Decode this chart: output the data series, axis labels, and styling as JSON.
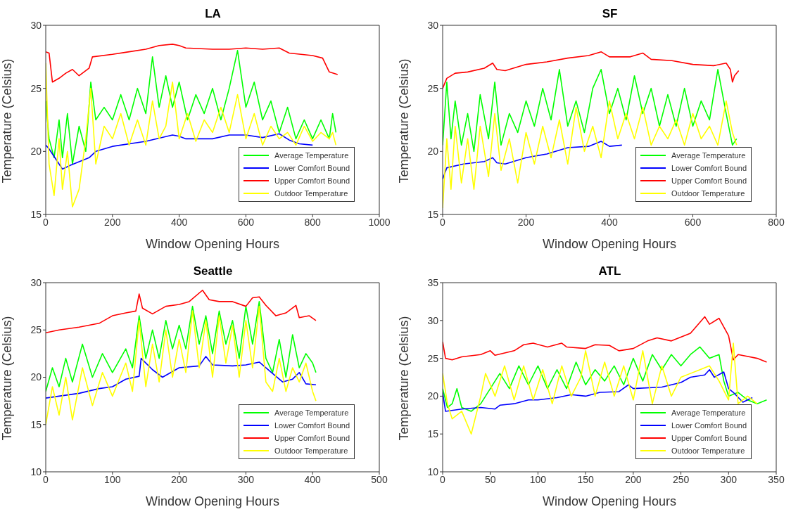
{
  "chart_data": [
    {
      "type": "line",
      "title": "LA",
      "xlabel": "Window Opening Hours",
      "ylabel": "Temperature (Celsius)",
      "xlim": [
        0,
        1000
      ],
      "xticks": [
        0,
        200,
        400,
        600,
        800,
        1000
      ],
      "ylim": [
        15,
        30
      ],
      "yticks": [
        15,
        20,
        25,
        30
      ],
      "legend": "bottom right",
      "series": [
        {
          "name": "Average Temperature",
          "color": "#00ff00",
          "x": [
            0,
            10,
            25,
            40,
            50,
            65,
            80,
            100,
            120,
            135,
            150,
            175,
            200,
            225,
            250,
            275,
            300,
            320,
            340,
            360,
            380,
            400,
            425,
            450,
            475,
            500,
            525,
            550,
            575,
            600,
            625,
            650,
            675,
            700,
            725,
            750,
            775,
            800,
            825,
            850,
            860,
            870
          ],
          "values": [
            24,
            21,
            19.5,
            22.5,
            19.5,
            23,
            19,
            22,
            20,
            25.5,
            22.5,
            23.5,
            22.5,
            24.5,
            22.5,
            25,
            23,
            27.5,
            23.5,
            26,
            23.5,
            25.5,
            22.5,
            24.5,
            23,
            25,
            22.5,
            25,
            28,
            23.5,
            25.5,
            22.5,
            24,
            21.5,
            23.5,
            21,
            22.5,
            21,
            22.5,
            21,
            23,
            21.5
          ]
        },
        {
          "name": "Lower Comfort Bound",
          "color": "#0000ff",
          "x": [
            0,
            10,
            50,
            74,
            130,
            150,
            200,
            300,
            380,
            400,
            420,
            500,
            550,
            600,
            650,
            700,
            730,
            760,
            800
          ],
          "values": [
            20.5,
            20.2,
            18.6,
            18.9,
            19.5,
            20.0,
            20.4,
            20.8,
            21.3,
            21.2,
            21.0,
            21.0,
            21.3,
            21.3,
            21.1,
            21.4,
            20.9,
            20.6,
            20.5
          ]
        },
        {
          "name": "Upper Comfort Bound",
          "color": "#ff0000",
          "x": [
            0,
            10,
            20,
            40,
            60,
            80,
            100,
            130,
            140,
            200,
            250,
            300,
            340,
            380,
            400,
            420,
            500,
            550,
            600,
            650,
            700,
            730,
            800,
            830,
            850,
            875
          ],
          "values": [
            27.9,
            27.8,
            25.5,
            25.8,
            26.2,
            26.5,
            26.0,
            26.6,
            27.5,
            27.7,
            27.9,
            28.1,
            28.4,
            28.5,
            28.4,
            28.2,
            28.1,
            28.1,
            28.2,
            28.1,
            28.2,
            27.8,
            27.6,
            27.4,
            26.3,
            26.1
          ]
        },
        {
          "name": "Outdoor Temperature",
          "color": "#ffff00",
          "x": [
            0,
            10,
            25,
            40,
            50,
            65,
            80,
            100,
            120,
            135,
            150,
            175,
            200,
            225,
            250,
            275,
            300,
            320,
            340,
            360,
            380,
            400,
            425,
            450,
            475,
            500,
            525,
            550,
            575,
            600,
            625,
            650,
            675,
            700,
            725,
            750,
            775,
            800,
            825,
            850,
            860,
            870
          ],
          "values": [
            27,
            19,
            16.5,
            21,
            17,
            20,
            15.6,
            17,
            21,
            25,
            19,
            22,
            21,
            23,
            20.5,
            22.5,
            20.5,
            24,
            21,
            22,
            25.5,
            21,
            23,
            20.8,
            22.5,
            21.5,
            23.5,
            21.5,
            24.5,
            21,
            23,
            20.5,
            22,
            21,
            21.5,
            20.5,
            22,
            20.8,
            21.5,
            21,
            21.5,
            20.5
          ]
        }
      ]
    },
    {
      "type": "line",
      "title": "SF",
      "xlabel": "Window Opening Hours",
      "ylabel": "Temperature (Celsius)",
      "xlim": [
        0,
        800
      ],
      "xticks": [
        0,
        200,
        400,
        600,
        800
      ],
      "ylim": [
        15,
        30
      ],
      "yticks": [
        15,
        20,
        25,
        30
      ],
      "legend": "bottom right",
      "series": [
        {
          "name": "Average Temperature",
          "color": "#00ff00",
          "x": [
            0,
            10,
            20,
            30,
            45,
            60,
            75,
            90,
            110,
            125,
            140,
            160,
            180,
            200,
            220,
            240,
            260,
            280,
            300,
            320,
            340,
            360,
            380,
            400,
            420,
            440,
            460,
            480,
            500,
            520,
            540,
            560,
            580,
            600,
            620,
            640,
            660,
            680,
            695,
            705
          ],
          "values": [
            20.5,
            25.5,
            21,
            24,
            20.5,
            23,
            20,
            24.5,
            21,
            25.5,
            20.5,
            23,
            21.5,
            24,
            22,
            25,
            22.5,
            26.5,
            22,
            24,
            21.5,
            25,
            26.5,
            23,
            25,
            22.5,
            26,
            23,
            25,
            22,
            24.5,
            22,
            25,
            22,
            24,
            22.5,
            26.5,
            23,
            20.5,
            21
          ]
        },
        {
          "name": "Lower Comfort Bound",
          "color": "#0000ff",
          "x": [
            0,
            10,
            50,
            100,
            120,
            130,
            150,
            200,
            250,
            300,
            350,
            380,
            400,
            430
          ],
          "values": [
            17.8,
            18.7,
            19.0,
            19.2,
            19.5,
            19.1,
            19.0,
            19.5,
            19.8,
            20.3,
            20.4,
            20.8,
            20.4,
            20.5
          ]
        },
        {
          "name": "Upper Comfort Bound",
          "color": "#ff0000",
          "x": [
            0,
            10,
            30,
            60,
            100,
            120,
            130,
            150,
            200,
            250,
            300,
            350,
            380,
            400,
            450,
            480,
            500,
            550,
            600,
            650,
            680,
            690,
            695,
            700,
            710
          ],
          "values": [
            25.0,
            25.8,
            26.2,
            26.3,
            26.6,
            27.0,
            26.5,
            26.4,
            26.9,
            27.1,
            27.4,
            27.6,
            27.9,
            27.5,
            27.5,
            27.8,
            27.3,
            27.2,
            26.9,
            26.8,
            27.0,
            26.5,
            25.5,
            26.0,
            26.4
          ]
        },
        {
          "name": "Outdoor Temperature",
          "color": "#ffff00",
          "x": [
            0,
            10,
            20,
            30,
            45,
            60,
            75,
            90,
            110,
            125,
            140,
            160,
            180,
            200,
            220,
            240,
            260,
            280,
            300,
            320,
            340,
            360,
            380,
            400,
            420,
            440,
            460,
            480,
            500,
            520,
            540,
            560,
            580,
            600,
            620,
            640,
            660,
            680,
            695,
            705
          ],
          "values": [
            15.5,
            21,
            17,
            22,
            17.5,
            21,
            17,
            22,
            18,
            23,
            18.5,
            21,
            17.5,
            21.5,
            19,
            22,
            19.5,
            22.5,
            19,
            23.5,
            20,
            22,
            19.5,
            24,
            21,
            23,
            21,
            23.5,
            20.5,
            22,
            21,
            22.5,
            20.5,
            23,
            21,
            22,
            20.5,
            24,
            21.5,
            20.5
          ]
        }
      ]
    },
    {
      "type": "line",
      "title": "Seattle",
      "xlabel": "Window Opening Hours",
      "ylabel": "Temperature (Celsius)",
      "xlim": [
        0,
        500
      ],
      "xticks": [
        0,
        100,
        200,
        300,
        400,
        500
      ],
      "ylim": [
        10,
        30
      ],
      "yticks": [
        10,
        15,
        20,
        25,
        30
      ],
      "legend": "bottom right",
      "series": [
        {
          "name": "Average Temperature",
          "color": "#00ff00",
          "x": [
            0,
            10,
            20,
            30,
            40,
            55,
            70,
            85,
            100,
            120,
            130,
            140,
            150,
            160,
            170,
            180,
            190,
            200,
            210,
            220,
            230,
            240,
            250,
            260,
            270,
            280,
            290,
            300,
            310,
            320,
            330,
            340,
            350,
            360,
            370,
            380,
            390,
            400,
            405
          ],
          "values": [
            18.5,
            21,
            19,
            22,
            19.5,
            23.5,
            20,
            22.5,
            20.5,
            23,
            21,
            26.5,
            22,
            25,
            22,
            26,
            23,
            25.5,
            23,
            27.5,
            23.5,
            26.5,
            22.5,
            27,
            23.5,
            26,
            22,
            27.5,
            23.5,
            28,
            22,
            20.5,
            24,
            20,
            24.5,
            21,
            22.5,
            21.5,
            20.5
          ]
        },
        {
          "name": "Lower Comfort Bound",
          "color": "#0000ff",
          "x": [
            0,
            20,
            50,
            80,
            100,
            120,
            140,
            143,
            160,
            175,
            200,
            230,
            240,
            250,
            280,
            300,
            320,
            340,
            355,
            370,
            380,
            390,
            405
          ],
          "values": [
            17.8,
            18.0,
            18.3,
            18.8,
            19.0,
            19.8,
            20.1,
            22.0,
            20.8,
            20.0,
            21.0,
            21.2,
            22.2,
            21.3,
            21.2,
            21.3,
            21.6,
            20.4,
            19.5,
            19.8,
            20.5,
            19.3,
            19.2
          ]
        },
        {
          "name": "Upper Comfort Bound",
          "color": "#ff0000",
          "x": [
            0,
            20,
            50,
            80,
            100,
            120,
            135,
            140,
            145,
            160,
            180,
            200,
            215,
            235,
            245,
            260,
            280,
            300,
            310,
            320,
            330,
            345,
            360,
            375,
            380,
            395,
            405
          ],
          "values": [
            24.7,
            25.0,
            25.3,
            25.7,
            26.5,
            26.8,
            27.0,
            28.8,
            27.3,
            26.7,
            27.5,
            27.7,
            28.0,
            29.2,
            28.2,
            28.0,
            28.0,
            27.5,
            28.4,
            28.5,
            27.6,
            26.5,
            26.8,
            27.6,
            26.3,
            26.5,
            26.0
          ]
        },
        {
          "name": "Outdoor Temperature",
          "color": "#ffff00",
          "x": [
            0,
            10,
            20,
            30,
            40,
            55,
            70,
            85,
            100,
            120,
            130,
            140,
            150,
            160,
            170,
            180,
            190,
            200,
            210,
            220,
            230,
            240,
            250,
            260,
            270,
            280,
            290,
            300,
            310,
            320,
            330,
            340,
            350,
            360,
            370,
            380,
            390,
            400,
            405
          ],
          "values": [
            15,
            19,
            16,
            20,
            15.5,
            21,
            17,
            20.5,
            18,
            21.5,
            18.5,
            26,
            19,
            23.5,
            19.5,
            25,
            20,
            24,
            20.5,
            27,
            21,
            26,
            20,
            26.5,
            21.5,
            25.5,
            20,
            26,
            21,
            27.5,
            19.5,
            18.5,
            22,
            18.5,
            21,
            19.5,
            21.5,
            18.5,
            17.5
          ]
        }
      ]
    },
    {
      "type": "line",
      "title": "ATL",
      "xlabel": "Window Opening Hours",
      "ylabel": "Temperature (Celsius)",
      "xlim": [
        0,
        350
      ],
      "xticks": [
        0,
        50,
        100,
        150,
        200,
        250,
        300,
        350
      ],
      "ylim": [
        10,
        35
      ],
      "yticks": [
        10,
        15,
        20,
        25,
        30,
        35
      ],
      "legend": "bottom right",
      "series": [
        {
          "name": "Average Temperature",
          "color": "#00ff00",
          "x": [
            0,
            5,
            10,
            15,
            20,
            30,
            40,
            50,
            60,
            70,
            80,
            90,
            100,
            110,
            120,
            130,
            140,
            150,
            160,
            170,
            180,
            190,
            200,
            210,
            220,
            230,
            240,
            250,
            260,
            270,
            280,
            290,
            295,
            300,
            310,
            320,
            330,
            340
          ],
          "values": [
            21,
            18.5,
            19,
            21,
            18.5,
            18,
            19,
            21,
            23,
            21,
            24,
            21.5,
            24,
            21,
            23.5,
            21,
            24.5,
            21.5,
            23.5,
            22,
            24,
            21.5,
            25,
            22,
            25.5,
            23.5,
            25.5,
            24,
            25.5,
            26.5,
            25,
            25.5,
            22,
            20,
            20.5,
            19.5,
            19,
            19.5
          ]
        },
        {
          "name": "Lower Comfort Bound",
          "color": "#0000ff",
          "x": [
            0,
            3,
            20,
            40,
            55,
            60,
            75,
            90,
            100,
            120,
            135,
            150,
            165,
            185,
            195,
            200,
            230,
            250,
            260,
            275,
            280,
            285,
            295,
            300,
            305,
            315,
            325
          ],
          "values": [
            20.5,
            18.0,
            18.3,
            18.5,
            18.3,
            18.8,
            19.0,
            19.5,
            19.5,
            19.8,
            20.2,
            20.0,
            20.5,
            20.6,
            21.5,
            21.0,
            21.2,
            21.8,
            22.5,
            22.8,
            23.5,
            22.5,
            23.2,
            21.0,
            20.5,
            19.2,
            19.8
          ]
        },
        {
          "name": "Upper Comfort Bound",
          "color": "#ff0000",
          "x": [
            0,
            3,
            10,
            20,
            40,
            50,
            55,
            75,
            85,
            95,
            110,
            125,
            130,
            150,
            160,
            175,
            185,
            200,
            215,
            225,
            240,
            260,
            275,
            280,
            290,
            300,
            305,
            310,
            330,
            340
          ],
          "values": [
            27.2,
            25.0,
            24.8,
            25.2,
            25.5,
            26.0,
            25.4,
            26.0,
            26.8,
            27.0,
            26.5,
            27.0,
            26.5,
            26.3,
            26.8,
            26.7,
            26.0,
            26.3,
            27.3,
            27.7,
            27.3,
            28.3,
            30.5,
            29.5,
            30.3,
            28.0,
            24.8,
            25.5,
            25.0,
            24.5
          ]
        },
        {
          "name": "Outdoor Temperature",
          "color": "#ffff00",
          "x": [
            0,
            5,
            10,
            20,
            30,
            40,
            45,
            55,
            65,
            75,
            85,
            95,
            105,
            115,
            125,
            135,
            145,
            150,
            160,
            170,
            180,
            190,
            200,
            210,
            220,
            230,
            240,
            250,
            260,
            270,
            280,
            290,
            300,
            305,
            310,
            320,
            330
          ],
          "values": [
            23,
            19,
            17,
            18,
            15,
            20,
            23,
            20,
            24,
            19.5,
            24,
            19.5,
            23.5,
            19,
            24,
            20,
            22.5,
            26,
            20,
            24.5,
            20,
            24,
            19.5,
            26,
            19,
            24,
            20,
            22.5,
            23,
            23.5,
            24,
            22,
            19.5,
            27,
            19,
            20,
            19
          ]
        }
      ]
    }
  ]
}
